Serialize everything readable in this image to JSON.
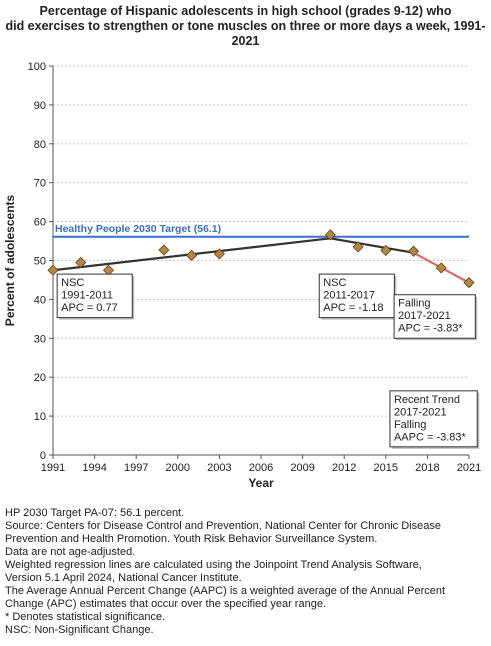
{
  "title_lines": [
    "Percentage of Hispanic adolescents in high school (grades 9-12) who",
    "did exercises to strengthen or tone muscles on three or more days a week, 1991-",
    "2021"
  ],
  "chart_data": {
    "type": "line",
    "xlabel": "Year",
    "ylabel": "Percent of adolescents",
    "xlim": [
      1991,
      2021
    ],
    "ylim": [
      0,
      100
    ],
    "x_ticks": [
      1991,
      1994,
      1997,
      2000,
      2003,
      2006,
      2009,
      2012,
      2015,
      2018,
      2021
    ],
    "y_ticks": [
      0,
      10,
      20,
      30,
      40,
      50,
      60,
      70,
      80,
      90,
      100
    ],
    "grid": "horizontal",
    "points": [
      {
        "x": 1991,
        "y": 47.5
      },
      {
        "x": 1993,
        "y": 49.5
      },
      {
        "x": 1995,
        "y": 47.5
      },
      {
        "x": 1999,
        "y": 52.7
      },
      {
        "x": 2001,
        "y": 51.3
      },
      {
        "x": 2003,
        "y": 51.7
      },
      {
        "x": 2011,
        "y": 56.6
      },
      {
        "x": 2013,
        "y": 53.5
      },
      {
        "x": 2015,
        "y": 52.6
      },
      {
        "x": 2017,
        "y": 52.4
      },
      {
        "x": 2019,
        "y": 48.1
      },
      {
        "x": 2021,
        "y": 44.3
      }
    ],
    "trend_segments": [
      {
        "x": [
          1991,
          2011
        ],
        "y": [
          47.5,
          55.7
        ],
        "color": "#333333"
      },
      {
        "x": [
          2011,
          2017
        ],
        "y": [
          55.7,
          52.0
        ],
        "color": "#333333"
      },
      {
        "x": [
          2017,
          2021
        ],
        "y": [
          52.0,
          44.3
        ],
        "color": "#e06666"
      }
    ],
    "target": {
      "value": 56.1,
      "label": "Healthy People 2030 Target (56.1)",
      "color": "#3a6fd0"
    },
    "marker_color": "#b8863a",
    "annotations": [
      {
        "lines": [
          "NSC",
          "1991-2011",
          "APC =  0.77"
        ],
        "anchor_x": 1991.3,
        "anchor_y": 46.5
      },
      {
        "lines": [
          "NSC",
          "2011-2017",
          "APC = -1.18"
        ],
        "anchor_x": 2010.2,
        "anchor_y": 46.5
      },
      {
        "lines": [
          "Falling",
          "2017-2021",
          "APC = -3.83*"
        ],
        "anchor_x": 2015.6,
        "anchor_y": 41.2
      },
      {
        "lines": [
          "Recent Trend",
          "2017-2021",
          "Falling",
          "AAPC = -3.83*"
        ],
        "anchor_x": 2015.3,
        "anchor_y": 16.5
      }
    ]
  },
  "footer_lines": [
    "HP 2030 Target PA-07: 56.1 percent.",
    "Source: Centers for Disease Control and Prevention, National Center for Chronic Disease",
    "Prevention and Health Promotion. Youth Risk Behavior Surveillance System.",
    "Data are not age-adjusted.",
    "Weighted regression lines are calculated using the Joinpoint Trend Analysis Software,",
    "Version 5.1 April 2024, National Cancer Institute.",
    "The Average Annual Percent Change (AAPC) is a weighted average of the Annual Percent",
    "Change (APC) estimates that occur over the specified year range.",
    "* Denotes statistical significance.",
    "NSC: Non-Significant Change."
  ]
}
